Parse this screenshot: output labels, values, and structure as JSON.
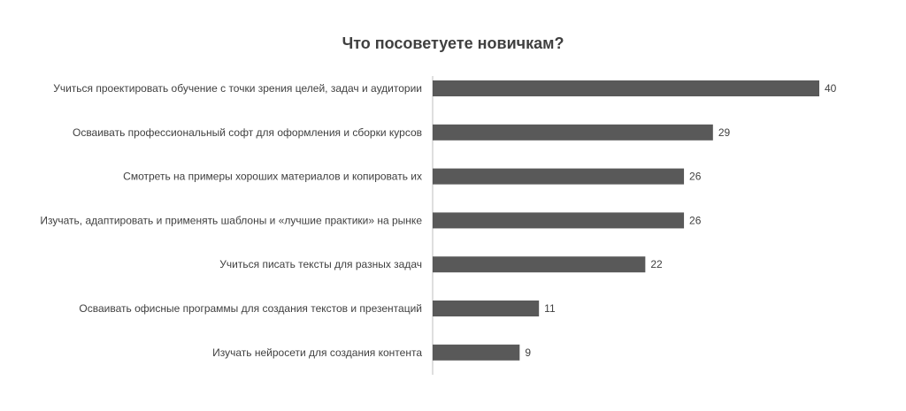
{
  "chart_data": {
    "type": "bar",
    "orientation": "horizontal",
    "title": "Что посоветуете новичкам?",
    "categories": [
      "Учиться проектировать обучение с точки зрения целей, задач и аудитории",
      "Осваивать профессиональный софт для оформления и сборки курсов",
      "Смотреть на примеры хороших материалов и копировать их",
      "Изучать, адаптировать и применять шаблоны и «лучшие практики» на рынке",
      "Учиться писать тексты для разных задач",
      "Осваивать офисные программы для создания текстов и презентаций",
      "Изучать нейросети для создания контента"
    ],
    "values": [
      40,
      29,
      26,
      26,
      22,
      11,
      9
    ],
    "xlim": [
      0,
      40
    ],
    "grid": false,
    "legend": "none",
    "data_labels": true
  },
  "colors": {
    "bar": "#595959",
    "axis": "#bfbfbf",
    "text": "#404040"
  }
}
